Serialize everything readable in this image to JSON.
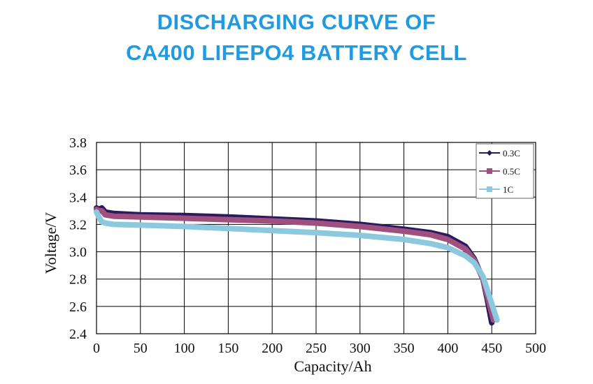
{
  "header": {
    "title_line1": "DISCHARGING CURVE OF",
    "title_line2": "CA400 LIFEPO4 BATTERY CELL"
  },
  "chart_data": {
    "type": "line",
    "title": "DISCHARGING CURVE OF CA400 LIFEPO4 BATTERY CELL",
    "xlabel": "Capacity/Ah",
    "ylabel": "Voltage/V",
    "xlim": [
      0,
      500
    ],
    "ylim": [
      2.4,
      3.8
    ],
    "xticks": [
      "0",
      "50",
      "100",
      "150",
      "200",
      "250",
      "300",
      "350",
      "400",
      "450",
      "500"
    ],
    "yticks": [
      "2.4",
      "2.6",
      "2.8",
      "3.0",
      "3.2",
      "3.4",
      "3.6",
      "3.8"
    ],
    "grid": true,
    "legend_position": "top-right",
    "series": [
      {
        "name": "0.3C",
        "color": "#2a1a5e",
        "x": [
          0,
          3,
          6,
          10,
          20,
          50,
          100,
          150,
          200,
          250,
          300,
          350,
          380,
          400,
          420,
          430,
          440,
          445,
          450
        ],
        "y": [
          3.32,
          3.31,
          3.32,
          3.29,
          3.28,
          3.27,
          3.265,
          3.255,
          3.24,
          3.225,
          3.2,
          3.165,
          3.14,
          3.11,
          3.04,
          2.95,
          2.8,
          2.65,
          2.48
        ]
      },
      {
        "name": "0.5C",
        "color": "#a0507f",
        "x": [
          0,
          3,
          6,
          10,
          20,
          50,
          100,
          150,
          200,
          250,
          300,
          350,
          380,
          400,
          420,
          430,
          440,
          446,
          452
        ],
        "y": [
          3.31,
          3.3,
          3.3,
          3.27,
          3.26,
          3.255,
          3.245,
          3.235,
          3.225,
          3.21,
          3.185,
          3.15,
          3.125,
          3.09,
          3.02,
          2.94,
          2.8,
          2.65,
          2.5
        ]
      },
      {
        "name": "1C",
        "color": "#8cc8de",
        "x": [
          0,
          3,
          6,
          10,
          20,
          50,
          100,
          150,
          200,
          250,
          300,
          350,
          380,
          400,
          420,
          430,
          440,
          448,
          456
        ],
        "y": [
          3.29,
          3.25,
          3.22,
          3.21,
          3.2,
          3.195,
          3.185,
          3.17,
          3.155,
          3.14,
          3.12,
          3.09,
          3.06,
          3.03,
          2.97,
          2.92,
          2.82,
          2.66,
          2.5
        ]
      }
    ]
  }
}
